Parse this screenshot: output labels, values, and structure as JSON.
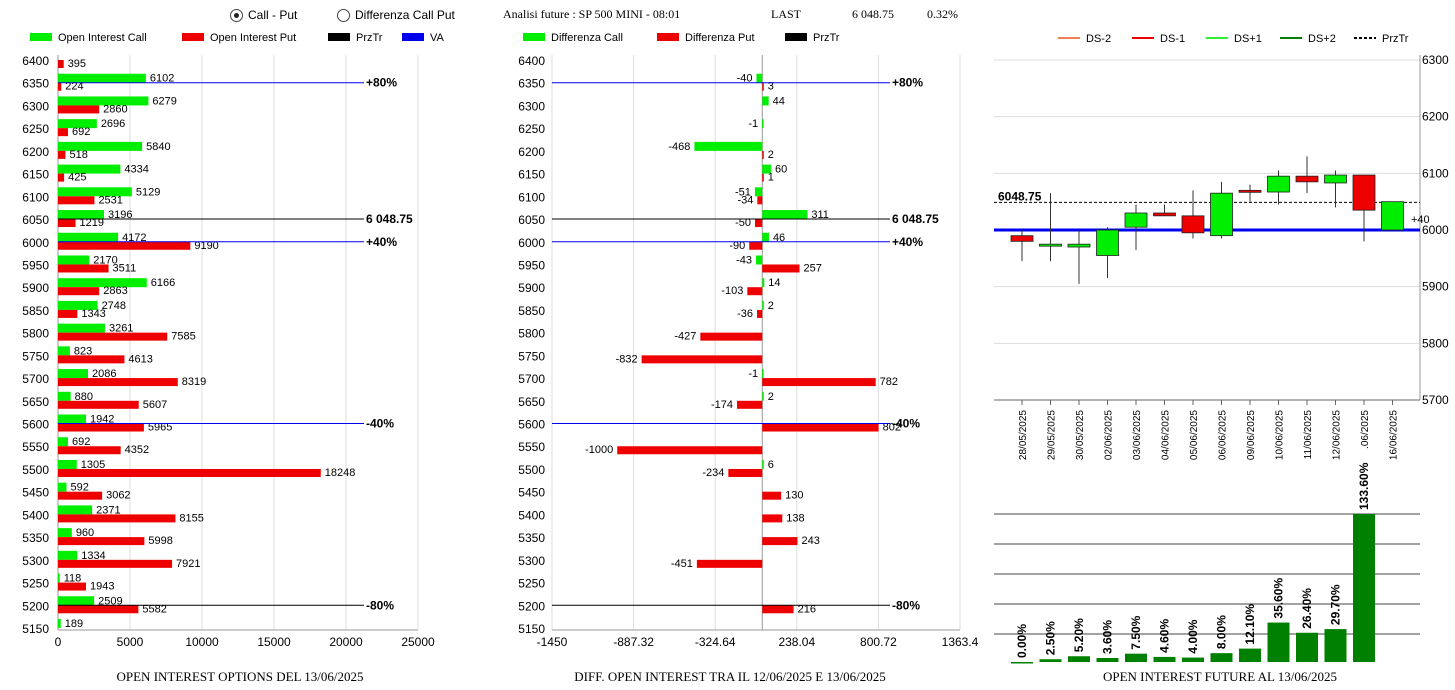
{
  "header": {
    "radio_call_put": "Call - Put",
    "radio_diff": "Differenza Call Put",
    "title": "Analisi future : SP 500 MINI - 08:01",
    "last_label": "LAST",
    "last_value": "6 048.75",
    "change": "0.32%"
  },
  "colors": {
    "call": "#00ee00",
    "put": "#ee0000",
    "prztr": "#000000",
    "va": "#0000ee",
    "dark_green": "#008000"
  },
  "chart_data": [
    {
      "type": "bar",
      "title": "OPEN INTEREST OPTIONS DEL 13/06/2025",
      "legend": [
        "Open Interest Call",
        "Open Interest Put",
        "PrzTr",
        "VA"
      ],
      "categories": [
        "6400",
        "6350",
        "6300",
        "6250",
        "6200",
        "6150",
        "6100",
        "6050",
        "6000",
        "5950",
        "5900",
        "5850",
        "5800",
        "5750",
        "5700",
        "5650",
        "5600",
        "5550",
        "5500",
        "5450",
        "5400",
        "5350",
        "5300",
        "5250",
        "5200",
        "5150"
      ],
      "series": [
        {
          "name": "Open Interest Call",
          "values": [
            null,
            6102,
            6279,
            2696,
            5840,
            4334,
            5129,
            3196,
            4172,
            2170,
            6166,
            2748,
            3261,
            823,
            2086,
            880,
            1942,
            692,
            1305,
            592,
            2371,
            960,
            1334,
            118,
            2509,
            189
          ]
        },
        {
          "name": "Open Interest Put",
          "values": [
            395,
            224,
            2860,
            692,
            518,
            425,
            2531,
            1219,
            9190,
            3511,
            2863,
            1343,
            7585,
            4613,
            8319,
            5607,
            5965,
            4352,
            18248,
            3062,
            8155,
            5998,
            7921,
            1943,
            5582,
            null
          ]
        }
      ],
      "xticks": [
        "0",
        "5000",
        "10000",
        "15000",
        "20000",
        "25000"
      ],
      "xlim": [
        0,
        25000
      ],
      "reference_lines": [
        {
          "level": "6350",
          "label": "+80%",
          "color": "va"
        },
        {
          "level": "6050",
          "label": "6 048.75",
          "color": "prztr"
        },
        {
          "level": "6000",
          "label": "+40%",
          "color": "va"
        },
        {
          "level": "5600",
          "label": "-40%",
          "color": "va"
        },
        {
          "level": "5200",
          "label": "-80%",
          "color": "prztr"
        }
      ]
    },
    {
      "type": "bar",
      "title": "DIFF. OPEN INTEREST TRA IL 12/06/2025 E 13/06/2025",
      "legend": [
        "Differenza Call",
        "Differenza Put",
        "PrzTr"
      ],
      "categories": [
        "6400",
        "6350",
        "6300",
        "6250",
        "6200",
        "6150",
        "6100",
        "6050",
        "6000",
        "5950",
        "5900",
        "5850",
        "5800",
        "5750",
        "5700",
        "5650",
        "5600",
        "5550",
        "5500",
        "5450",
        "5400",
        "5350",
        "5300",
        "5250",
        "5200",
        "5150"
      ],
      "series": [
        {
          "name": "Differenza Call",
          "values": [
            null,
            -40,
            44,
            -1,
            -468,
            60,
            -51,
            311,
            46,
            -43,
            14,
            2,
            null,
            null,
            -1,
            2,
            null,
            null,
            6,
            null,
            null,
            null,
            null,
            null,
            null,
            null
          ]
        },
        {
          "name": "Differenza Put",
          "values": [
            null,
            3,
            null,
            null,
            2,
            1,
            -34,
            -50,
            -90,
            257,
            -103,
            -36,
            -427,
            -832,
            782,
            -174,
            802,
            -1000,
            -234,
            130,
            138,
            243,
            -451,
            null,
            216,
            null
          ]
        }
      ],
      "xticks": [
        "-1450",
        "-887.32",
        "-324.64",
        "238.04",
        "800.72",
        "1363.4"
      ],
      "xlim": [
        -1450,
        1363.4
      ],
      "reference_lines": [
        {
          "level": "6350",
          "label": "+80%",
          "color": "va"
        },
        {
          "level": "6050",
          "label": "6 048.75",
          "color": "prztr"
        },
        {
          "level": "6000",
          "label": "+40%",
          "color": "va"
        },
        {
          "level": "5600",
          "label": "-40%",
          "color": "va"
        },
        {
          "level": "5200",
          "label": "-80%",
          "color": "prztr"
        }
      ]
    },
    {
      "type": "candlestick",
      "legend": [
        "DS-2",
        "DS-1",
        "DS+1",
        "DS+2",
        "PrzTr"
      ],
      "legend_colors": [
        "#f08050",
        "#ee0000",
        "#33ee33",
        "#008000",
        "#000000"
      ],
      "dates": [
        "28/05/2025",
        "29/05/2025",
        "30/05/2025",
        "02/06/2025",
        "03/06/2025",
        "04/06/2025",
        "05/06/2025",
        "06/06/2025",
        "09/06/2025",
        "10/06/2025",
        "11/06/2025",
        "12/06/2025",
        ".06/2025",
        "16/06/2025"
      ],
      "candles": [
        {
          "o": 5990,
          "h": 6000,
          "l": 5945,
          "c": 5980
        },
        {
          "o": 5975,
          "h": 6065,
          "l": 5945,
          "c": 5975
        },
        {
          "o": 5970,
          "h": 6000,
          "l": 5905,
          "c": 5975
        },
        {
          "o": 5955,
          "h": 6005,
          "l": 5915,
          "c": 6000
        },
        {
          "o": 6005,
          "h": 6045,
          "l": 5965,
          "c": 6030
        },
        {
          "o": 6030,
          "h": 6045,
          "l": 6025,
          "c": 6025
        },
        {
          "o": 6025,
          "h": 6070,
          "l": 5985,
          "c": 5995
        },
        {
          "o": 5990,
          "h": 6085,
          "l": 5985,
          "c": 6065
        },
        {
          "o": 6070,
          "h": 6080,
          "l": 6050,
          "c": 6067
        },
        {
          "o": 6067,
          "h": 6105,
          "l": 6045,
          "c": 6095
        },
        {
          "o": 6095,
          "h": 6130,
          "l": 6065,
          "c": 6085
        },
        {
          "o": 6083,
          "h": 6105,
          "l": 6040,
          "c": 6097
        },
        {
          "o": 6097,
          "h": 6097,
          "l": 5980,
          "c": 6035
        },
        {
          "o": 6000,
          "h": 6050,
          "l": 6000,
          "c": 6050
        }
      ],
      "yticks": [
        "5700",
        "5800",
        "5900",
        "6000",
        "6100",
        "6200",
        "6300"
      ],
      "ylim": [
        5700,
        6300
      ],
      "prztr_label": "6048.75",
      "prztr_value": 6048.75,
      "va_value": 6000,
      "last_delta": "+40"
    },
    {
      "type": "bar",
      "title": "OPEN INTEREST FUTURE AL 13/06/2025",
      "bar_labels": [
        "0.00%",
        "2.50%",
        "5.20%",
        "3.60%",
        "7.50%",
        "4.60%",
        "4.00%",
        "8.00%",
        "12.10%",
        "35.60%",
        "26.40%",
        "29.70%",
        "133.60%"
      ],
      "values": [
        0.0,
        2.5,
        5.2,
        3.6,
        7.5,
        4.6,
        4.0,
        8.0,
        12.1,
        35.6,
        26.4,
        29.7,
        133.6
      ]
    }
  ]
}
